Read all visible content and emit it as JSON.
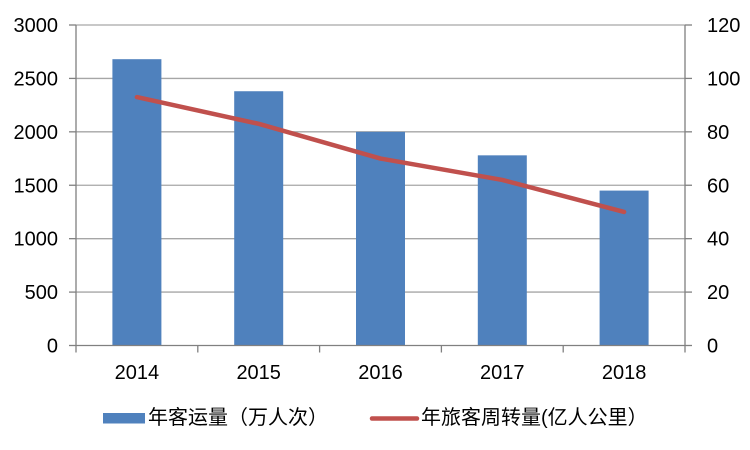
{
  "chart_data": {
    "type": "combo-bar-line",
    "categories": [
      "2014",
      "2015",
      "2016",
      "2017",
      "2018"
    ],
    "series": [
      {
        "name": "年客运量（万人次）",
        "type": "bar",
        "axis": "left",
        "color": "#4f81bd",
        "values": [
          2680,
          2380,
          2000,
          1780,
          1450
        ]
      },
      {
        "name": "年旅客周转量(亿人公里）",
        "type": "line",
        "axis": "right",
        "color": "#c0504d",
        "values": [
          93,
          83,
          70,
          62,
          50
        ]
      }
    ],
    "left_axis": {
      "min": 0,
      "max": 3000,
      "step": 500,
      "tick_labels": [
        "0",
        "500",
        "1000",
        "1500",
        "2000",
        "2500",
        "3000"
      ]
    },
    "right_axis": {
      "min": 0,
      "max": 120,
      "step": 20,
      "tick_labels": [
        "0",
        "20",
        "40",
        "60",
        "80",
        "100",
        "120"
      ]
    },
    "x_tick_labels": [
      "2014",
      "2015",
      "2016",
      "2017",
      "2018"
    ],
    "grid": true,
    "legend_position": "bottom",
    "title": "",
    "xlabel": "",
    "ylabel": "",
    "colors": {
      "background": "#ffffff",
      "gridline": "#a6a6a6",
      "axis": "#808080",
      "text": "#000000",
      "bar": "#4f81bd",
      "line": "#c0504d"
    }
  }
}
